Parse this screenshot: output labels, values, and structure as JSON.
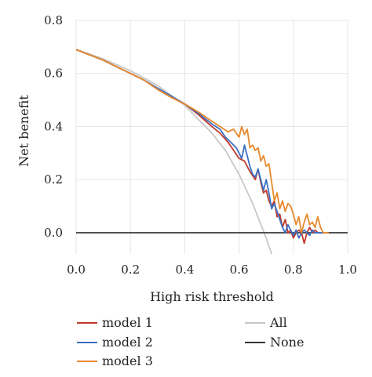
{
  "chart_data": {
    "type": "line",
    "xlabel": "High risk threshold",
    "ylabel": "Net benefit",
    "xlim": [
      0.0,
      1.0
    ],
    "ylim": [
      -0.08,
      0.8
    ],
    "xticks": [
      "0.0",
      "0.2",
      "0.4",
      "0.6",
      "0.8",
      "1.0"
    ],
    "yticks": [
      "0.0",
      "0.2",
      "0.4",
      "0.6",
      "0.8"
    ],
    "xtick_values": [
      0.0,
      0.2,
      0.4,
      0.6,
      0.8,
      1.0
    ],
    "ytick_values": [
      0.0,
      0.2,
      0.4,
      0.6,
      0.8
    ],
    "grid": true,
    "legend_position": "bottom",
    "series": [
      {
        "name": "model 1",
        "color": "#c0392b",
        "points": [
          [
            0.0,
            0.69
          ],
          [
            0.05,
            0.67
          ],
          [
            0.1,
            0.65
          ],
          [
            0.15,
            0.625
          ],
          [
            0.2,
            0.6
          ],
          [
            0.25,
            0.575
          ],
          [
            0.3,
            0.54
          ],
          [
            0.35,
            0.51
          ],
          [
            0.4,
            0.485
          ],
          [
            0.45,
            0.445
          ],
          [
            0.5,
            0.4
          ],
          [
            0.53,
            0.375
          ],
          [
            0.56,
            0.34
          ],
          [
            0.58,
            0.31
          ],
          [
            0.6,
            0.28
          ],
          [
            0.62,
            0.27
          ],
          [
            0.64,
            0.23
          ],
          [
            0.66,
            0.2
          ],
          [
            0.67,
            0.24
          ],
          [
            0.68,
            0.19
          ],
          [
            0.69,
            0.15
          ],
          [
            0.7,
            0.16
          ],
          [
            0.71,
            0.12
          ],
          [
            0.72,
            0.1
          ],
          [
            0.73,
            0.12
          ],
          [
            0.74,
            0.06
          ],
          [
            0.75,
            0.07
          ],
          [
            0.76,
            0.02
          ],
          [
            0.77,
            0.05
          ],
          [
            0.78,
            0.0
          ],
          [
            0.79,
            0.01
          ],
          [
            0.8,
            -0.02
          ],
          [
            0.81,
            0.0
          ],
          [
            0.82,
            0.01
          ],
          [
            0.83,
            0.0
          ],
          [
            0.84,
            -0.04
          ],
          [
            0.85,
            0.0
          ],
          [
            0.86,
            0.02
          ],
          [
            0.87,
            0.0
          ],
          [
            0.88,
            0.01
          ],
          [
            0.89,
            0.0
          ],
          [
            0.9,
            0.0
          ],
          [
            0.92,
            0.0
          ]
        ]
      },
      {
        "name": "model 2",
        "color": "#3a6fc4",
        "points": [
          [
            0.0,
            0.69
          ],
          [
            0.05,
            0.67
          ],
          [
            0.1,
            0.65
          ],
          [
            0.15,
            0.625
          ],
          [
            0.2,
            0.6
          ],
          [
            0.25,
            0.575
          ],
          [
            0.3,
            0.545
          ],
          [
            0.35,
            0.515
          ],
          [
            0.4,
            0.485
          ],
          [
            0.45,
            0.45
          ],
          [
            0.5,
            0.41
          ],
          [
            0.53,
            0.39
          ],
          [
            0.55,
            0.36
          ],
          [
            0.57,
            0.34
          ],
          [
            0.59,
            0.32
          ],
          [
            0.61,
            0.28
          ],
          [
            0.62,
            0.33
          ],
          [
            0.63,
            0.29
          ],
          [
            0.64,
            0.25
          ],
          [
            0.65,
            0.22
          ],
          [
            0.66,
            0.21
          ],
          [
            0.67,
            0.24
          ],
          [
            0.68,
            0.2
          ],
          [
            0.69,
            0.16
          ],
          [
            0.7,
            0.2
          ],
          [
            0.71,
            0.15
          ],
          [
            0.72,
            0.09
          ],
          [
            0.73,
            0.11
          ],
          [
            0.74,
            0.08
          ],
          [
            0.75,
            0.05
          ],
          [
            0.76,
            0.02
          ],
          [
            0.77,
            0.0
          ],
          [
            0.78,
            0.03
          ],
          [
            0.79,
            0.01
          ],
          [
            0.8,
            -0.01
          ],
          [
            0.81,
            0.01
          ],
          [
            0.82,
            -0.02
          ],
          [
            0.83,
            0.0
          ],
          [
            0.84,
            0.01
          ],
          [
            0.85,
            0.0
          ],
          [
            0.86,
            -0.01
          ],
          [
            0.87,
            0.01
          ],
          [
            0.88,
            0.0
          ],
          [
            0.9,
            0.0
          ],
          [
            0.92,
            0.0
          ]
        ]
      },
      {
        "name": "model 3",
        "color": "#e8892d",
        "points": [
          [
            0.0,
            0.69
          ],
          [
            0.05,
            0.67
          ],
          [
            0.1,
            0.65
          ],
          [
            0.15,
            0.625
          ],
          [
            0.2,
            0.6
          ],
          [
            0.25,
            0.575
          ],
          [
            0.3,
            0.54
          ],
          [
            0.35,
            0.51
          ],
          [
            0.4,
            0.485
          ],
          [
            0.45,
            0.455
          ],
          [
            0.5,
            0.42
          ],
          [
            0.53,
            0.4
          ],
          [
            0.56,
            0.38
          ],
          [
            0.58,
            0.39
          ],
          [
            0.6,
            0.36
          ],
          [
            0.61,
            0.4
          ],
          [
            0.62,
            0.37
          ],
          [
            0.63,
            0.39
          ],
          [
            0.64,
            0.32
          ],
          [
            0.65,
            0.33
          ],
          [
            0.66,
            0.31
          ],
          [
            0.67,
            0.32
          ],
          [
            0.68,
            0.27
          ],
          [
            0.69,
            0.29
          ],
          [
            0.7,
            0.25
          ],
          [
            0.71,
            0.26
          ],
          [
            0.72,
            0.19
          ],
          [
            0.73,
            0.12
          ],
          [
            0.74,
            0.15
          ],
          [
            0.75,
            0.09
          ],
          [
            0.76,
            0.12
          ],
          [
            0.77,
            0.08
          ],
          [
            0.78,
            0.11
          ],
          [
            0.79,
            0.1
          ],
          [
            0.8,
            0.07
          ],
          [
            0.81,
            0.03
          ],
          [
            0.82,
            0.06
          ],
          [
            0.83,
            0.0
          ],
          [
            0.84,
            0.04
          ],
          [
            0.85,
            0.07
          ],
          [
            0.86,
            0.03
          ],
          [
            0.87,
            0.04
          ],
          [
            0.88,
            0.02
          ],
          [
            0.89,
            0.06
          ],
          [
            0.9,
            0.02
          ],
          [
            0.91,
            0.0
          ],
          [
            0.93,
            0.0
          ]
        ]
      },
      {
        "name": "All",
        "color": "#c8c8c8",
        "points": [
          [
            0.0,
            0.69
          ],
          [
            0.1,
            0.655
          ],
          [
            0.2,
            0.61
          ],
          [
            0.3,
            0.555
          ],
          [
            0.4,
            0.48
          ],
          [
            0.5,
            0.375
          ],
          [
            0.55,
            0.31
          ],
          [
            0.6,
            0.22
          ],
          [
            0.65,
            0.11
          ],
          [
            0.7,
            -0.02
          ],
          [
            0.72,
            -0.08
          ]
        ]
      },
      {
        "name": "None",
        "color": "#333333",
        "points": [
          [
            0.0,
            0.0
          ],
          [
            1.0,
            0.0
          ]
        ]
      }
    ]
  }
}
